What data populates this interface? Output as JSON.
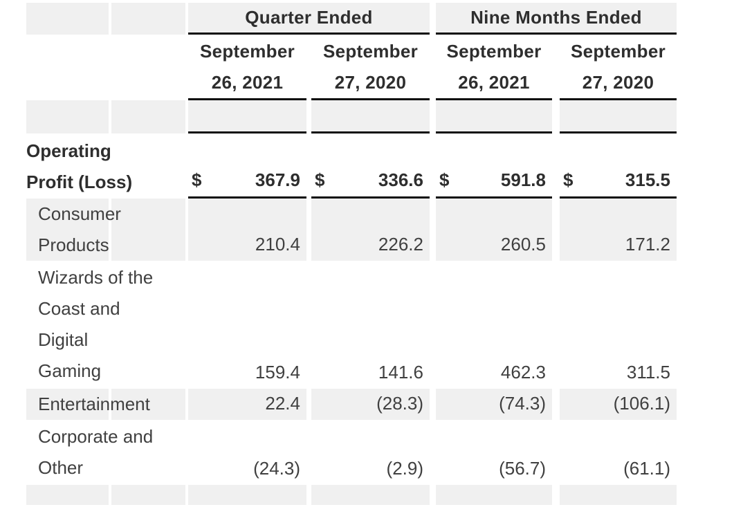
{
  "table": {
    "group_headers": [
      "Quarter Ended",
      "Nine Months Ended"
    ],
    "column_headers": [
      "September\n26, 2021",
      "September\n27, 2020",
      "September\n26, 2021",
      "September\n27, 2020"
    ],
    "currency_symbol": "$",
    "rows": [
      {
        "label": "Operating\nProfit (Loss)",
        "values": [
          "367.9",
          "336.6",
          "591.8",
          "315.5"
        ]
      },
      {
        "label": "Consumer\nProducts",
        "values": [
          "210.4",
          "226.2",
          "260.5",
          "171.2"
        ]
      },
      {
        "label": "Wizards of the\nCoast and\nDigital\nGaming",
        "values": [
          "159.4",
          "141.6",
          "462.3",
          "311.5"
        ]
      },
      {
        "label": "Entertainment",
        "values": [
          "22.4",
          "(28.3)",
          "(74.3)",
          "(106.1)"
        ]
      },
      {
        "label": "Corporate and\nOther",
        "values": [
          "(24.3)",
          "(2.9)",
          "(56.7)",
          "(61.1)"
        ]
      }
    ]
  },
  "colors": {
    "background": "#ffffff",
    "row_stripe": "#f0f0f0",
    "rule": "#0b0b0b",
    "text": "#404040",
    "text_bold": "#2e2e2e"
  }
}
